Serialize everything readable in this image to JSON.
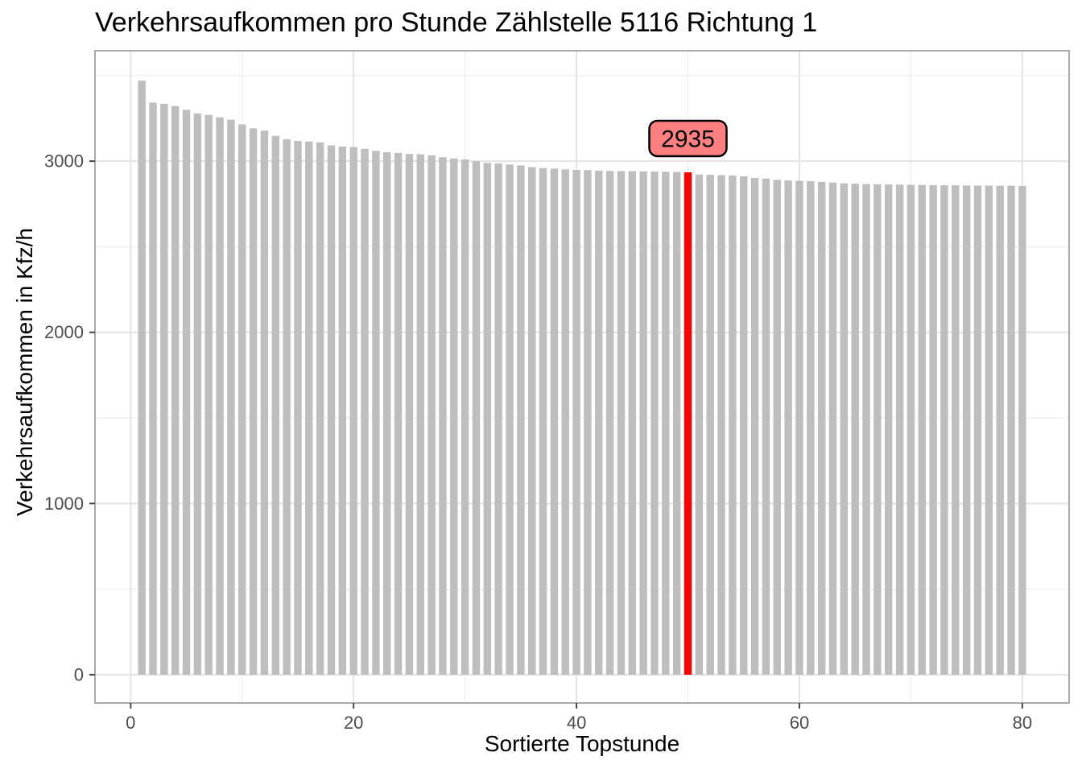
{
  "chart_data": {
    "type": "bar",
    "title": "Verkehrsaufkommen pro Stunde Zählstelle 5116 Richtung 1",
    "xlabel": "Sortierte Topstunde",
    "ylabel": "Verkehrsaufkommen in Kfz/h",
    "x": [
      1,
      2,
      3,
      4,
      5,
      6,
      7,
      8,
      9,
      10,
      11,
      12,
      13,
      14,
      15,
      16,
      17,
      18,
      19,
      20,
      21,
      22,
      23,
      24,
      25,
      26,
      27,
      28,
      29,
      30,
      31,
      32,
      33,
      34,
      35,
      36,
      37,
      38,
      39,
      40,
      41,
      42,
      43,
      44,
      45,
      46,
      47,
      48,
      49,
      50,
      51,
      52,
      53,
      54,
      55,
      56,
      57,
      58,
      59,
      60,
      61,
      62,
      63,
      64,
      65,
      66,
      67,
      68,
      69,
      70,
      71,
      72,
      73,
      74,
      75,
      76,
      77,
      78,
      79,
      80
    ],
    "values": [
      3470,
      3342,
      3335,
      3322,
      3300,
      3278,
      3270,
      3256,
      3242,
      3215,
      3192,
      3178,
      3148,
      3128,
      3118,
      3115,
      3110,
      3092,
      3085,
      3082,
      3072,
      3060,
      3052,
      3048,
      3042,
      3040,
      3034,
      3023,
      3016,
      3010,
      3000,
      2990,
      2986,
      2980,
      2975,
      2965,
      2960,
      2956,
      2952,
      2949,
      2948,
      2945,
      2943,
      2942,
      2941,
      2940,
      2939,
      2938,
      2937,
      2935,
      2922,
      2920,
      2918,
      2916,
      2911,
      2902,
      2898,
      2891,
      2887,
      2885,
      2883,
      2879,
      2875,
      2870,
      2868,
      2866,
      2865,
      2864,
      2863,
      2862,
      2861,
      2860,
      2859,
      2859,
      2858,
      2857,
      2857,
      2856,
      2856,
      2855
    ],
    "highlight": {
      "x": 50,
      "value": 2935,
      "label": "2935"
    },
    "x_ticks": [
      0,
      20,
      40,
      60,
      80
    ],
    "x_minor_ticks": [
      10,
      30,
      50,
      70
    ],
    "y_ticks": [
      0,
      1000,
      2000,
      3000
    ],
    "y_minor_ticks": [
      500,
      1500,
      2500,
      3500
    ],
    "xlim": [
      -3.2,
      84.2
    ],
    "ylim": [
      -165,
      3645
    ],
    "grid": true,
    "legend": "none",
    "bar_width_fraction": 0.68,
    "colors": {
      "bar": "#BEBEBE",
      "highlight": "#FF0000",
      "annotation_fill": "#FF8080",
      "annotation_border": "#000000",
      "annotation_text": "#000000",
      "grid_major": "#E3E3E3",
      "grid_minor": "#EFEFEF",
      "panel_border": "#ABABAB",
      "tick_mark": "#454545",
      "tick_label": "#4D4D4D",
      "background": "#FFFFFF"
    }
  }
}
